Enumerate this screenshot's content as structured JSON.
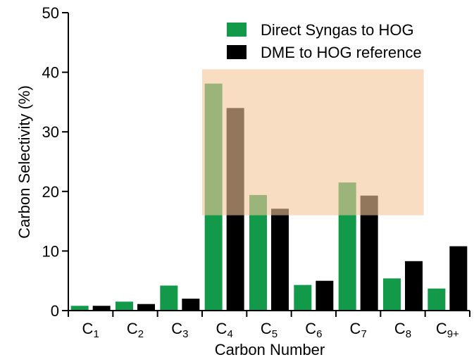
{
  "chart_data": {
    "type": "bar",
    "xlabel": "Carbon Number",
    "ylabel": "Carbon Selectivity (%)",
    "ylim": [
      0,
      50
    ],
    "yticks": [
      0,
      10,
      20,
      30,
      40,
      50
    ],
    "categories": [
      {
        "base": "C",
        "sub": "1"
      },
      {
        "base": "C",
        "sub": "2"
      },
      {
        "base": "C",
        "sub": "3"
      },
      {
        "base": "C",
        "sub": "4"
      },
      {
        "base": "C",
        "sub": "5"
      },
      {
        "base": "C",
        "sub": "6"
      },
      {
        "base": "C",
        "sub": "7"
      },
      {
        "base": "C",
        "sub": "8"
      },
      {
        "base": "C",
        "sub": "9+"
      }
    ],
    "series": [
      {
        "name": "Direct Syngas to HOG",
        "color": "#129a4a",
        "values": [
          0.8,
          1.5,
          4.2,
          38.1,
          19.4,
          4.3,
          21.5,
          5.4,
          3.7
        ]
      },
      {
        "name": "DME to HOG reference",
        "color": "#000000",
        "values": [
          0.8,
          1.1,
          2.0,
          34.0,
          17.1,
          5.0,
          19.3,
          8.3,
          10.8
        ]
      }
    ],
    "highlight": {
      "category_start": 3,
      "category_end": 7,
      "y_from": 16,
      "y_to": 40.5,
      "color": "#f5c79b",
      "opacity": 0.6
    },
    "legend_position": "top-right",
    "grid": false
  }
}
